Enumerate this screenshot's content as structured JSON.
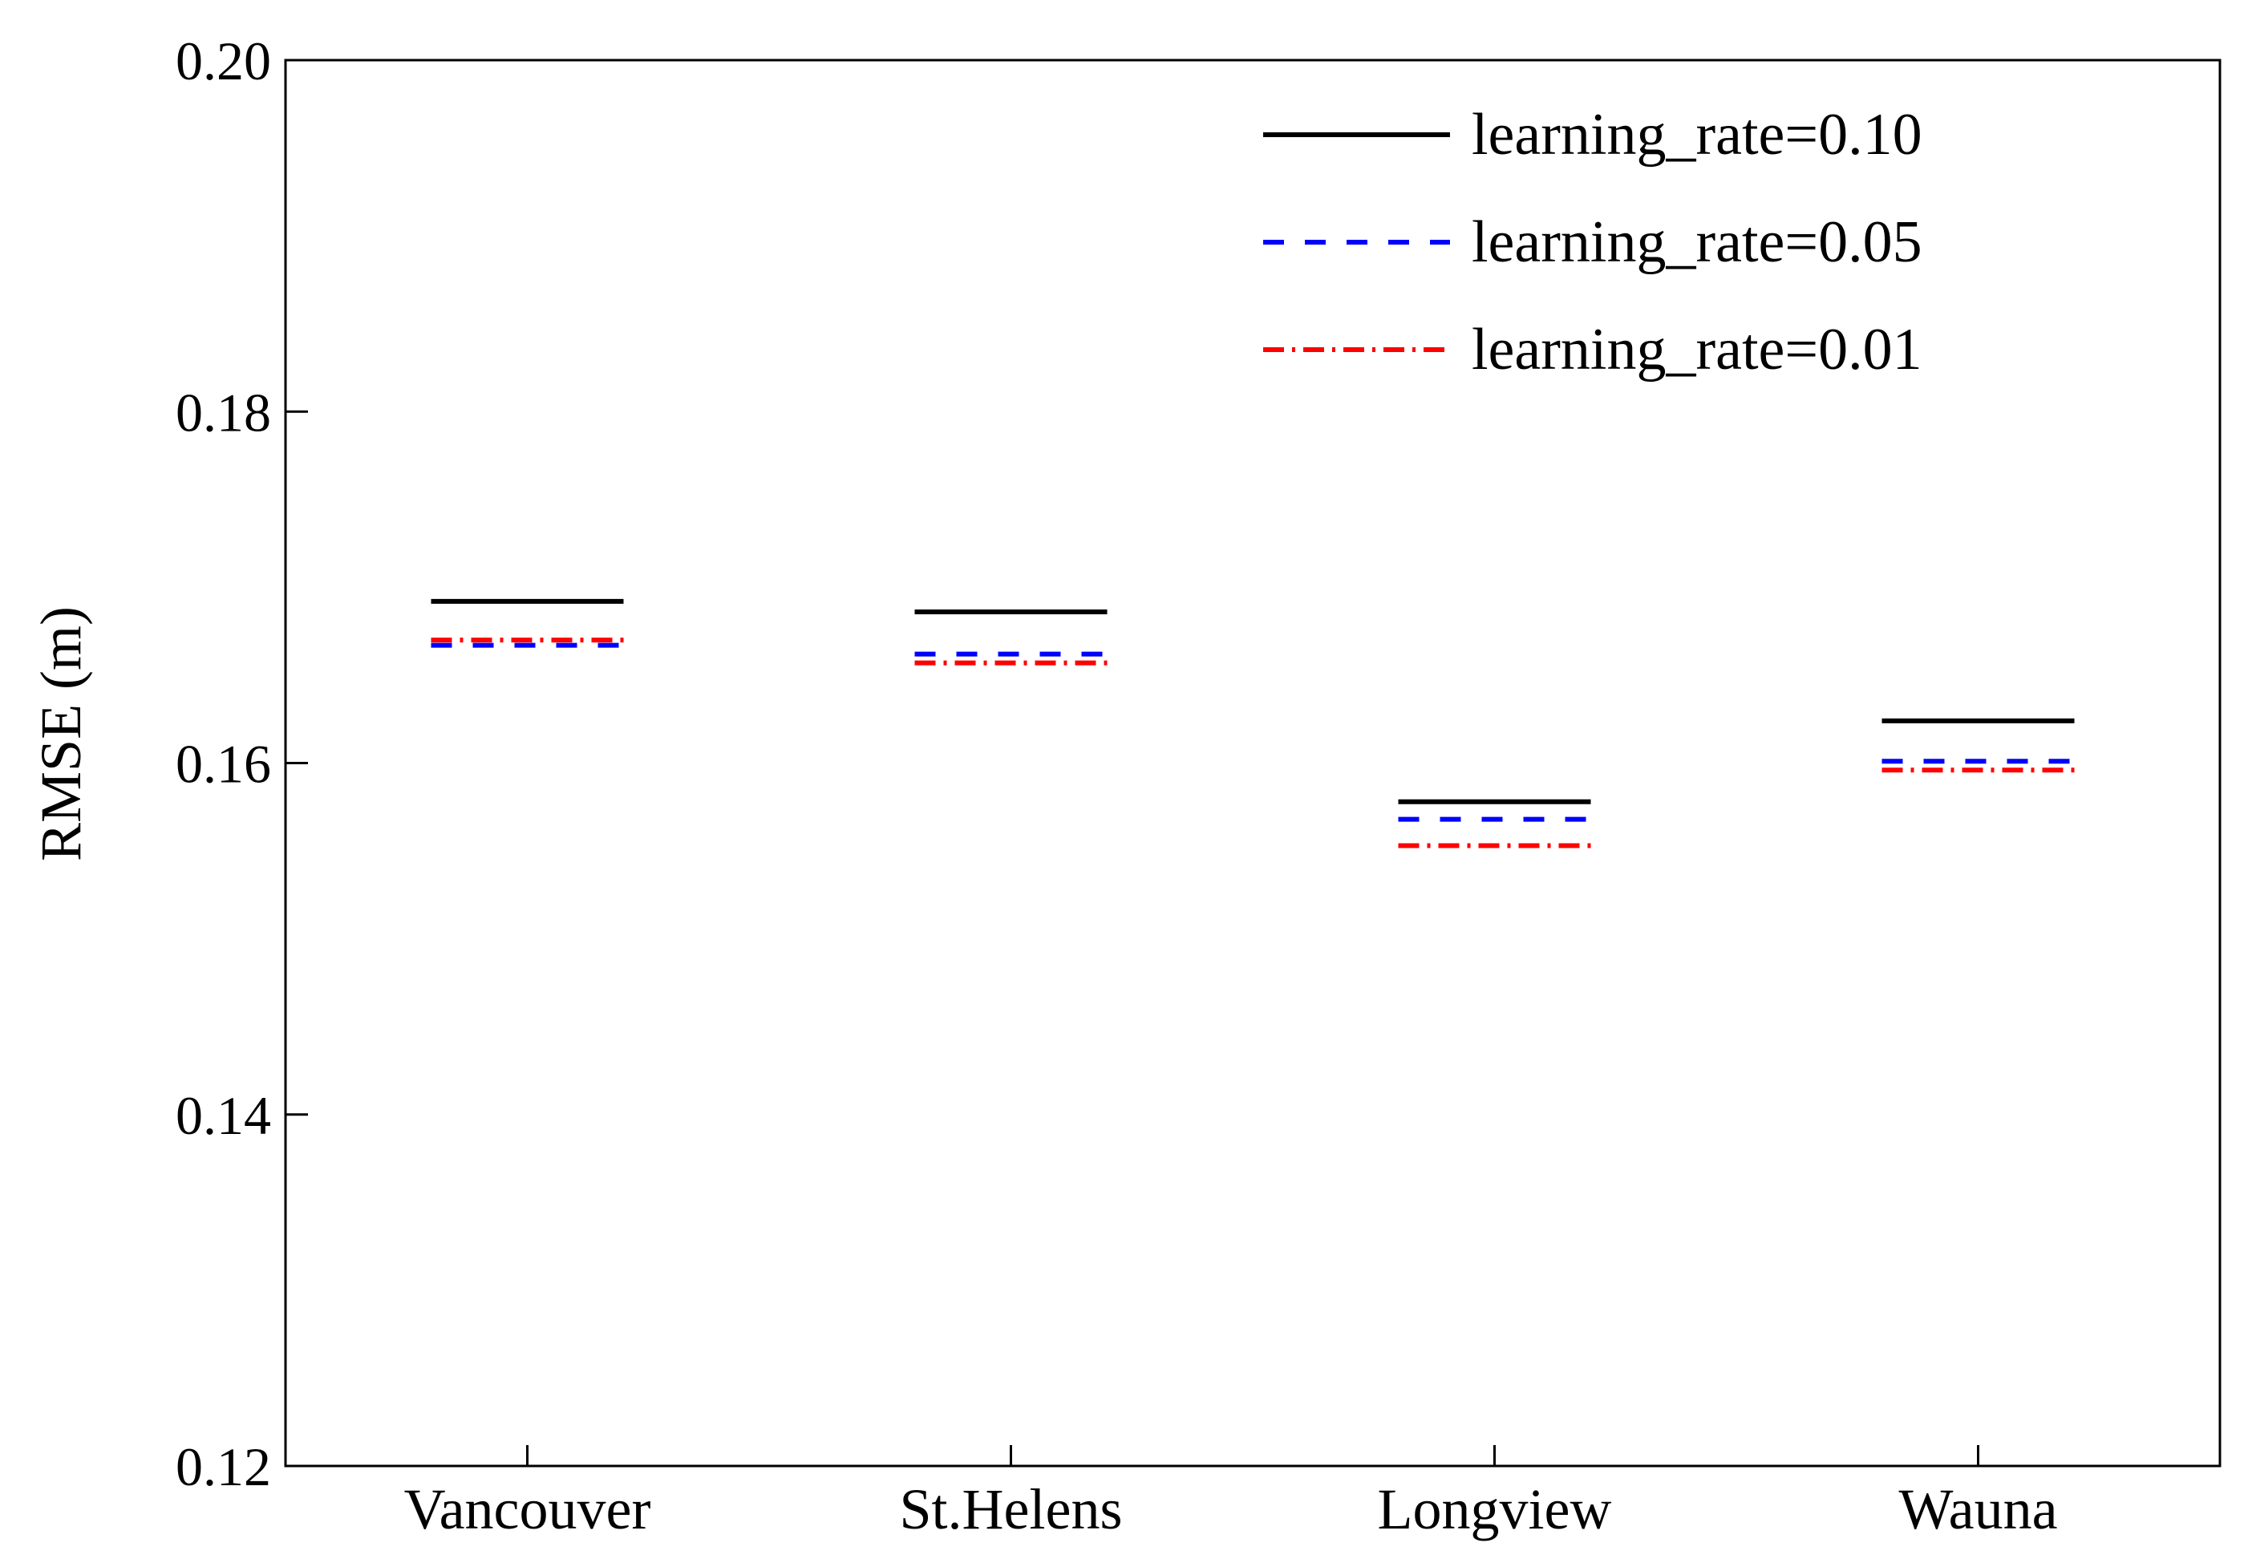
{
  "chart_data": {
    "type": "line",
    "ylabel": "RMSE (m)",
    "xlabel": "",
    "ylim": [
      0.12,
      0.2
    ],
    "yticks": [
      "0.12",
      "0.14",
      "0.16",
      "0.18",
      "0.20"
    ],
    "categories": [
      "Vancouver",
      "St.Helens",
      "Longview",
      "Wauna"
    ],
    "legend_position": "top-right",
    "grid": false,
    "series": [
      {
        "name": "learning_rate=0.10",
        "color": "#000000",
        "style": "solid",
        "values": [
          0.1692,
          0.1686,
          0.1578,
          0.1624
        ]
      },
      {
        "name": "learning_rate=0.05",
        "color": "#0000ff",
        "style": "dashed",
        "values": [
          0.1667,
          0.1662,
          0.1568,
          0.1601
        ]
      },
      {
        "name": "learning_rate=0.01",
        "color": "#ff0000",
        "style": "dashdot",
        "values": [
          0.167,
          0.1657,
          0.1553,
          0.1596
        ]
      }
    ]
  }
}
